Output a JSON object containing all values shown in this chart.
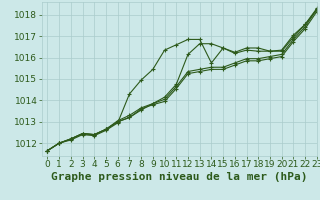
{
  "bg_color": "#cce8e8",
  "grid_color": "#aacccc",
  "line_color": "#2d5a1b",
  "title": "Graphe pression niveau de la mer (hPa)",
  "xlim": [
    -0.5,
    23
  ],
  "ylim": [
    1011.4,
    1018.6
  ],
  "yticks": [
    1012,
    1013,
    1014,
    1015,
    1016,
    1017,
    1018
  ],
  "xticks": [
    0,
    1,
    2,
    3,
    4,
    5,
    6,
    7,
    8,
    9,
    10,
    11,
    12,
    13,
    14,
    15,
    16,
    17,
    18,
    19,
    20,
    21,
    22,
    23
  ],
  "series": [
    [
      1011.65,
      1012.0,
      1012.2,
      1012.45,
      1012.4,
      1012.65,
      1013.05,
      1013.3,
      1013.65,
      1013.85,
      1014.15,
      1014.75,
      1016.15,
      1016.65,
      1016.65,
      1016.45,
      1016.2,
      1016.35,
      1016.3,
      1016.3,
      1016.35,
      1017.05,
      1017.55,
      1018.3
    ],
    [
      1011.65,
      1012.0,
      1012.2,
      1012.45,
      1012.4,
      1012.65,
      1013.0,
      1013.2,
      1013.55,
      1013.85,
      1014.05,
      1014.65,
      1015.35,
      1015.45,
      1015.55,
      1015.55,
      1015.75,
      1015.95,
      1015.95,
      1016.05,
      1016.15,
      1016.85,
      1017.45,
      1018.25
    ],
    [
      1011.65,
      1012.0,
      1012.2,
      1012.45,
      1012.4,
      1012.65,
      1013.0,
      1013.2,
      1013.6,
      1013.8,
      1013.95,
      1014.55,
      1015.25,
      1015.35,
      1015.45,
      1015.45,
      1015.65,
      1015.85,
      1015.85,
      1015.95,
      1016.05,
      1016.75,
      1017.35,
      1018.15
    ],
    [
      1011.65,
      1012.0,
      1012.15,
      1012.4,
      1012.35,
      1012.6,
      1012.95,
      1014.3,
      1014.95,
      1015.45,
      1016.35,
      1016.6,
      1016.85,
      1016.85,
      1015.75,
      1016.45,
      1016.25,
      1016.45,
      1016.45,
      1016.3,
      1016.3,
      1016.95,
      1017.55,
      1018.25
    ]
  ],
  "markersize": 2.5,
  "linewidth": 0.8,
  "title_fontsize": 8,
  "tick_fontsize": 6.5,
  "figsize": [
    3.2,
    2.0
  ],
  "dpi": 100
}
